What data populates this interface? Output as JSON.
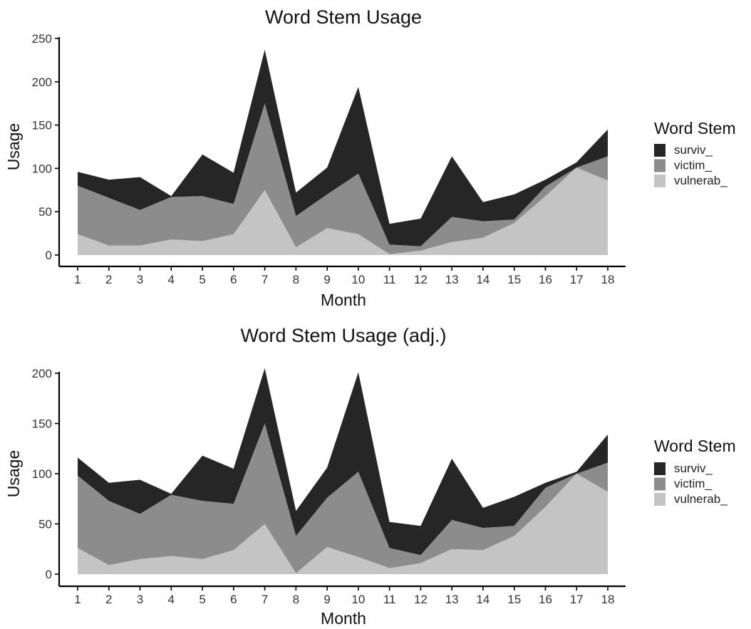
{
  "colors": {
    "surviv_": "#262626",
    "victim_": "#8c8c8c",
    "vulnerab_": "#c4c4c4"
  },
  "chart_data": [
    {
      "type": "area",
      "stacked": true,
      "title": "Word Stem Usage",
      "xlabel": "Month",
      "ylabel": "Usage",
      "x": [
        1,
        2,
        3,
        4,
        5,
        6,
        7,
        8,
        9,
        10,
        11,
        12,
        13,
        14,
        15,
        16,
        17,
        18
      ],
      "xlim": [
        1,
        18
      ],
      "ylim": [
        0,
        250
      ],
      "yticks": [
        0,
        50,
        100,
        150,
        200,
        250
      ],
      "legend_title": "Word Stem",
      "legend_position": "right",
      "series": [
        {
          "name": "vulnerab_",
          "values": [
            24,
            11,
            11,
            18,
            16,
            24,
            75,
            9,
            31,
            24,
            1,
            5,
            15,
            20,
            37,
            68,
            101,
            86
          ]
        },
        {
          "name": "victim_",
          "values": [
            56,
            55,
            41,
            49,
            52,
            35,
            100,
            36,
            39,
            70,
            11,
            5,
            29,
            19,
            4,
            11,
            0,
            28
          ]
        },
        {
          "name": "surviv_",
          "values": [
            16,
            21,
            38,
            1,
            48,
            36,
            62,
            27,
            31,
            100,
            24,
            32,
            70,
            22,
            29,
            8,
            6,
            31
          ]
        }
      ]
    },
    {
      "type": "area",
      "stacked": true,
      "title": "Word Stem Usage (adj.)",
      "xlabel": "Month",
      "ylabel": "Usage",
      "x": [
        1,
        2,
        3,
        4,
        5,
        6,
        7,
        8,
        9,
        10,
        11,
        12,
        13,
        14,
        15,
        16,
        17,
        18
      ],
      "xlim": [
        1,
        18
      ],
      "ylim": [
        0,
        200
      ],
      "yticks": [
        0,
        50,
        100,
        150,
        200
      ],
      "legend_title": "Word Stem",
      "legend_position": "right",
      "series": [
        {
          "name": "vulnerab_",
          "values": [
            26,
            9,
            15,
            18,
            15,
            24,
            50,
            1,
            27,
            17,
            6,
            11,
            25,
            24,
            38,
            67,
            100,
            82
          ]
        },
        {
          "name": "victim_",
          "values": [
            72,
            64,
            45,
            61,
            58,
            46,
            100,
            37,
            49,
            85,
            20,
            8,
            29,
            22,
            10,
            19,
            0,
            29
          ]
        },
        {
          "name": "surviv_",
          "values": [
            18,
            18,
            34,
            1,
            45,
            35,
            55,
            25,
            30,
            99,
            26,
            29,
            61,
            20,
            29,
            5,
            2,
            28
          ]
        }
      ]
    }
  ]
}
